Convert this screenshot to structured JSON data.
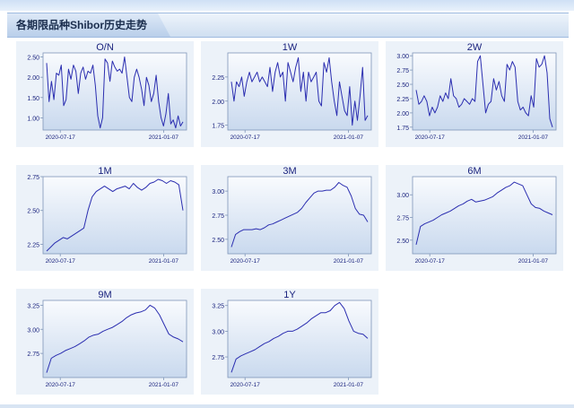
{
  "page_title": "各期限品种Shibor历史走势",
  "colors": {
    "line": "#2b2eb0",
    "axis": "#7f95b8",
    "text": "#1a237e"
  },
  "chart_data": [
    {
      "type": "line",
      "title": "O/N",
      "ylim": [
        0.7,
        2.6
      ],
      "yticks": [
        "2.50",
        "2.00",
        "1.50",
        "1.00"
      ],
      "xticks": [
        "2020-07-17",
        "2021-01-07"
      ],
      "series": [
        {
          "values": [
            2.35,
            1.4,
            1.9,
            1.45,
            2.1,
            2.05,
            2.3,
            1.3,
            1.45,
            2.2,
            1.95,
            2.3,
            2.15,
            1.6,
            2.1,
            2.25,
            1.95,
            2.15,
            2.1,
            2.3,
            1.8,
            1.05,
            0.75,
            1.0,
            2.45,
            2.35,
            1.9,
            2.4,
            2.25,
            2.15,
            2.2,
            2.1,
            2.5,
            2.0,
            1.5,
            1.4,
            2.0,
            2.2,
            2.0,
            1.7,
            1.3,
            2.0,
            1.8,
            1.4,
            1.6,
            2.05,
            1.4,
            1.0,
            0.8,
            1.1,
            1.6,
            0.85,
            0.95,
            0.75,
            1.05,
            0.8,
            0.9
          ]
        }
      ]
    },
    {
      "type": "line",
      "title": "1W",
      "ylim": [
        1.7,
        2.5
      ],
      "yticks": [
        "2.25",
        "2.00",
        "1.75"
      ],
      "xticks": [
        "2020-07-17",
        "2021-01-07"
      ],
      "series": [
        {
          "values": [
            2.2,
            2.0,
            2.2,
            2.15,
            2.25,
            2.05,
            2.2,
            2.3,
            2.2,
            2.25,
            2.3,
            2.2,
            2.25,
            2.2,
            2.15,
            2.35,
            2.1,
            2.3,
            2.4,
            2.25,
            2.3,
            2.0,
            2.4,
            2.3,
            2.2,
            2.35,
            2.45,
            2.1,
            2.3,
            2.0,
            2.3,
            2.2,
            2.25,
            2.3,
            2.0,
            1.95,
            2.4,
            2.3,
            2.45,
            2.2,
            2.0,
            1.85,
            2.2,
            2.05,
            1.9,
            1.85,
            2.15,
            1.75,
            2.0,
            1.8,
            2.05,
            2.35,
            1.8,
            1.85
          ]
        }
      ]
    },
    {
      "type": "line",
      "title": "2W",
      "ylim": [
        1.7,
        3.05
      ],
      "yticks": [
        "3.00",
        "2.75",
        "2.50",
        "2.25",
        "2.00",
        "1.75"
      ],
      "xticks": [
        "2020-07-17",
        "2021-01-07"
      ],
      "series": [
        {
          "values": [
            2.4,
            2.15,
            2.2,
            2.3,
            2.2,
            1.95,
            2.1,
            2.0,
            2.1,
            2.3,
            2.2,
            2.35,
            2.25,
            2.6,
            2.3,
            2.25,
            2.1,
            2.15,
            2.25,
            2.2,
            2.15,
            2.25,
            2.2,
            2.9,
            3.0,
            2.5,
            2.0,
            2.15,
            2.2,
            2.6,
            2.4,
            2.55,
            2.3,
            2.2,
            2.85,
            2.75,
            2.9,
            2.8,
            2.2,
            2.05,
            2.1,
            2.0,
            1.95,
            2.3,
            2.1,
            2.95,
            2.8,
            2.85,
            3.0,
            2.7,
            1.9,
            1.75
          ]
        }
      ]
    },
    {
      "type": "line",
      "title": "1M",
      "ylim": [
        2.18,
        2.75
      ],
      "yticks": [
        "2.75",
        "2.50",
        "2.25"
      ],
      "xticks": [
        "2020-07-17",
        "2021-01-07"
      ],
      "series": [
        {
          "values": [
            2.2,
            2.23,
            2.26,
            2.28,
            2.3,
            2.29,
            2.31,
            2.33,
            2.35,
            2.37,
            2.5,
            2.6,
            2.64,
            2.66,
            2.68,
            2.66,
            2.64,
            2.66,
            2.67,
            2.68,
            2.66,
            2.7,
            2.67,
            2.65,
            2.67,
            2.7,
            2.71,
            2.73,
            2.72,
            2.7,
            2.72,
            2.71,
            2.69,
            2.5
          ]
        }
      ]
    },
    {
      "type": "line",
      "title": "3M",
      "ylim": [
        2.35,
        3.15
      ],
      "yticks": [
        "3.00",
        "2.75",
        "2.50"
      ],
      "xticks": [
        "2020-07-17",
        "2021-01-07"
      ],
      "series": [
        {
          "values": [
            2.42,
            2.55,
            2.58,
            2.6,
            2.6,
            2.6,
            2.61,
            2.6,
            2.62,
            2.65,
            2.66,
            2.68,
            2.7,
            2.72,
            2.74,
            2.76,
            2.78,
            2.82,
            2.88,
            2.93,
            2.98,
            3.0,
            3.0,
            3.01,
            3.01,
            3.04,
            3.09,
            3.06,
            3.04,
            2.95,
            2.82,
            2.76,
            2.75,
            2.68
          ]
        }
      ]
    },
    {
      "type": "line",
      "title": "6M",
      "ylim": [
        2.35,
        3.2
      ],
      "yticks": [
        "3.00",
        "2.75",
        "2.50"
      ],
      "xticks": [
        "2020-07-17",
        "2021-01-07"
      ],
      "series": [
        {
          "values": [
            2.45,
            2.65,
            2.68,
            2.7,
            2.72,
            2.75,
            2.78,
            2.8,
            2.82,
            2.85,
            2.88,
            2.9,
            2.93,
            2.95,
            2.92,
            2.93,
            2.94,
            2.96,
            2.98,
            3.02,
            3.05,
            3.08,
            3.1,
            3.14,
            3.12,
            3.1,
            3.0,
            2.9,
            2.86,
            2.85,
            2.82,
            2.8,
            2.78
          ]
        }
      ]
    },
    {
      "type": "line",
      "title": "9M",
      "ylim": [
        2.5,
        3.3
      ],
      "yticks": [
        "3.25",
        "3.00",
        "2.75"
      ],
      "xticks": [
        "2020-07-17",
        "2021-01-07"
      ],
      "series": [
        {
          "values": [
            2.55,
            2.7,
            2.73,
            2.75,
            2.78,
            2.8,
            2.82,
            2.85,
            2.88,
            2.92,
            2.94,
            2.95,
            2.98,
            3.0,
            3.02,
            3.05,
            3.08,
            3.12,
            3.15,
            3.17,
            3.18,
            3.2,
            3.25,
            3.22,
            3.15,
            3.05,
            2.95,
            2.92,
            2.9,
            2.87
          ]
        }
      ]
    },
    {
      "type": "line",
      "title": "1Y",
      "ylim": [
        2.55,
        3.3
      ],
      "yticks": [
        "3.25",
        "3.00",
        "2.75"
      ],
      "xticks": [
        "2020-07-17",
        "2021-01-07"
      ],
      "series": [
        {
          "values": [
            2.6,
            2.73,
            2.76,
            2.78,
            2.8,
            2.82,
            2.85,
            2.88,
            2.9,
            2.93,
            2.95,
            2.98,
            3.0,
            3.0,
            3.02,
            3.05,
            3.08,
            3.12,
            3.15,
            3.18,
            3.18,
            3.2,
            3.25,
            3.28,
            3.22,
            3.1,
            3.0,
            2.98,
            2.97,
            2.93
          ]
        }
      ]
    }
  ]
}
